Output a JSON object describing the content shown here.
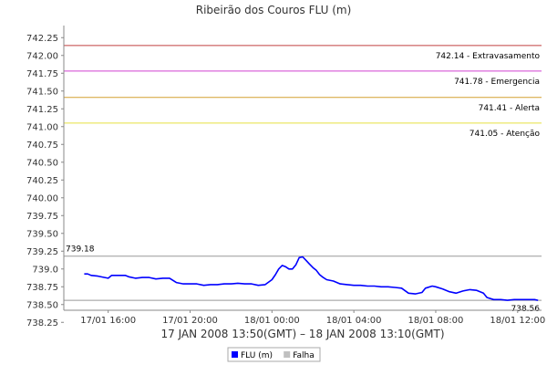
{
  "chart_data": {
    "type": "line",
    "title": "Ribeirão dos Couros FLU (m)",
    "xlabel": "17 JAN 2008 13:50(GMT) – 18 JAN 2008 13:10(GMT)",
    "ylabel": "",
    "ylim": [
      738.42,
      742.42
    ],
    "y_ticks": [
      738.25,
      738.5,
      738.75,
      739.0,
      739.25,
      739.5,
      739.75,
      740.0,
      740.25,
      740.5,
      740.75,
      741.0,
      741.25,
      741.5,
      741.75,
      742.0,
      742.25
    ],
    "y_tick_labels": [
      "738.25",
      "738.50",
      "738.75",
      "739.0",
      "739.25",
      "739.50",
      "739.75",
      "740.00",
      "740.25",
      "740.50",
      "740.75",
      "741.00",
      "741.25",
      "741.50",
      "741.75",
      "742.00",
      "742.25"
    ],
    "x_range_hours": [
      13.833,
      37.167
    ],
    "x_ticks": [
      {
        "hour": 16,
        "label": "17/01 16:00"
      },
      {
        "hour": 20,
        "label": "17/01 20:00"
      },
      {
        "hour": 24,
        "label": "18/01 00:00"
      },
      {
        "hour": 28,
        "label": "18/01 04:00"
      },
      {
        "hour": 32,
        "label": "18/01 08:00"
      },
      {
        "hour": 36,
        "label": "18/01 12:00"
      }
    ],
    "reference_lines": [
      {
        "value": 742.14,
        "label": "742.14 - Extravasamento",
        "color": "#c04040"
      },
      {
        "value": 741.78,
        "label": "741.78 - Emergencia",
        "color": "#d040d0"
      },
      {
        "value": 741.41,
        "label": "741.41 - Alerta",
        "color": "#d4a030"
      },
      {
        "value": 741.05,
        "label": "741.05 - Atenção",
        "color": "#e6e040"
      }
    ],
    "markers": [
      {
        "value": 739.18,
        "label": "739.18",
        "position": "left"
      },
      {
        "value": 738.56,
        "label": "738.56",
        "position": "right"
      }
    ],
    "series": [
      {
        "name": "FLU (m)",
        "color": "#0000ff",
        "points": [
          [
            14.83,
            738.93
          ],
          [
            15.0,
            738.93
          ],
          [
            15.17,
            738.91
          ],
          [
            15.5,
            738.9
          ],
          [
            15.83,
            738.88
          ],
          [
            16.0,
            738.87
          ],
          [
            16.17,
            738.91
          ],
          [
            16.5,
            738.91
          ],
          [
            16.83,
            738.91
          ],
          [
            17.0,
            738.89
          ],
          [
            17.33,
            738.87
          ],
          [
            17.67,
            738.88
          ],
          [
            18.0,
            738.88
          ],
          [
            18.33,
            738.86
          ],
          [
            18.67,
            738.87
          ],
          [
            19.0,
            738.87
          ],
          [
            19.33,
            738.81
          ],
          [
            19.67,
            738.79
          ],
          [
            20.0,
            738.79
          ],
          [
            20.33,
            738.79
          ],
          [
            20.67,
            738.77
          ],
          [
            21.0,
            738.78
          ],
          [
            21.33,
            738.78
          ],
          [
            21.67,
            738.79
          ],
          [
            22.0,
            738.79
          ],
          [
            22.33,
            738.8
          ],
          [
            22.67,
            738.79
          ],
          [
            23.0,
            738.79
          ],
          [
            23.33,
            738.77
          ],
          [
            23.67,
            738.78
          ],
          [
            24.0,
            738.85
          ],
          [
            24.17,
            738.92
          ],
          [
            24.33,
            739.0
          ],
          [
            24.5,
            739.05
          ],
          [
            24.67,
            739.03
          ],
          [
            24.83,
            739.0
          ],
          [
            25.0,
            739.0
          ],
          [
            25.17,
            739.06
          ],
          [
            25.33,
            739.16
          ],
          [
            25.5,
            739.17
          ],
          [
            25.67,
            739.12
          ],
          [
            25.83,
            739.07
          ],
          [
            26.0,
            739.02
          ],
          [
            26.17,
            738.98
          ],
          [
            26.33,
            738.92
          ],
          [
            26.5,
            738.88
          ],
          [
            26.67,
            738.85
          ],
          [
            27.0,
            738.83
          ],
          [
            27.33,
            738.79
          ],
          [
            27.67,
            738.78
          ],
          [
            28.0,
            738.77
          ],
          [
            28.33,
            738.77
          ],
          [
            28.67,
            738.76
          ],
          [
            29.0,
            738.76
          ],
          [
            29.33,
            738.75
          ],
          [
            29.67,
            738.75
          ],
          [
            30.0,
            738.74
          ],
          [
            30.33,
            738.73
          ],
          [
            30.67,
            738.66
          ],
          [
            31.0,
            738.65
          ],
          [
            31.33,
            738.67
          ],
          [
            31.5,
            738.73
          ],
          [
            31.83,
            738.76
          ],
          [
            32.0,
            738.75
          ],
          [
            32.33,
            738.72
          ],
          [
            32.67,
            738.68
          ],
          [
            33.0,
            738.66
          ],
          [
            33.33,
            738.69
          ],
          [
            33.67,
            738.71
          ],
          [
            34.0,
            738.7
          ],
          [
            34.33,
            738.66
          ],
          [
            34.5,
            738.6
          ],
          [
            34.83,
            738.57
          ],
          [
            35.17,
            738.57
          ],
          [
            35.5,
            738.56
          ],
          [
            35.83,
            738.57
          ],
          [
            36.17,
            738.57
          ],
          [
            36.5,
            738.57
          ],
          [
            36.83,
            738.57
          ],
          [
            37.0,
            738.56
          ]
        ]
      }
    ],
    "legend": {
      "position": "bottom-center",
      "entries": [
        {
          "label": "FLU (m)",
          "color": "#0000ff"
        },
        {
          "label": "Falha",
          "color": "#c0c0c0"
        }
      ]
    },
    "grid": false
  }
}
